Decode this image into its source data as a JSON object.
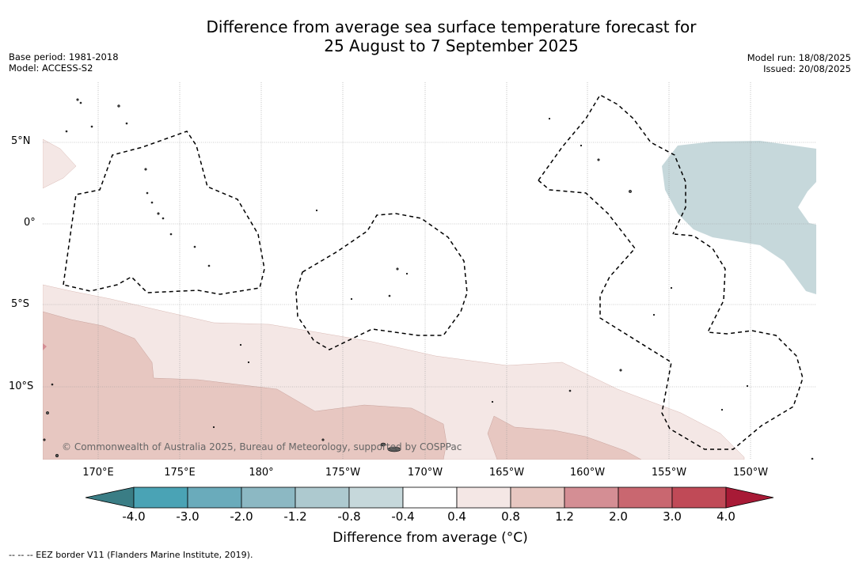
{
  "title": {
    "line1": "Difference from average sea surface temperature forecast for",
    "line2": "25 August to 7 September 2025"
  },
  "meta": {
    "base_period": "Base period: 1981-2018",
    "model": "Model: ACCESS-S2",
    "model_run": "Model run: 18/08/2025",
    "issued": "Issued: 20/08/2025"
  },
  "map": {
    "latitudes": [
      "5°N",
      "0°",
      "5°S",
      "10°S"
    ],
    "longitudes": [
      "170°E",
      "175°E",
      "180°",
      "175°W",
      "170°W",
      "165°W",
      "160°W",
      "155°W",
      "150°W"
    ],
    "copyright": "© Commonwealth of Australia 2025, Bureau of Meteorology, supported by COSPPac",
    "colors": {
      "anomaly_0_4_to_0_8": "#f4e7e5",
      "anomaly_0_8_to_1_2": "#e7c7c1",
      "anomaly_-0_8_to_-0_4": "#c6d8db",
      "land": "#555555",
      "eez_border": "#000000"
    }
  },
  "colorbar": {
    "ticks": [
      "-4.0",
      "-3.0",
      "-2.0",
      "-1.2",
      "-0.8",
      "-0.4",
      "0.4",
      "0.8",
      "1.2",
      "2.0",
      "3.0",
      "4.0"
    ],
    "colors": [
      "#3a7d85",
      "#4aa3b5",
      "#6aabbb",
      "#8cb8c3",
      "#adc9cf",
      "#c6d8db",
      "#ffffff",
      "#f4e7e5",
      "#e7c7c1",
      "#d48e94",
      "#c96770",
      "#c04a57",
      "#a81a36"
    ],
    "label": "Difference from average (°C)"
  },
  "footnote": "--  --  -- EEZ border V11 (Flanders Marine Institute, 2019)."
}
